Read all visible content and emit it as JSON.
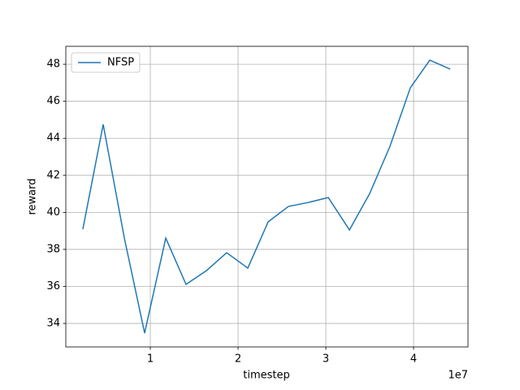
{
  "chart_data": {
    "type": "line",
    "xlabel": "timestep",
    "ylabel": "reward",
    "x_offset_label": "1e7",
    "x": [
      2310000,
      4630000,
      7040000,
      9350000,
      11760000,
      14070000,
      16390000,
      18700000,
      21110000,
      23430000,
      25740000,
      28060000,
      30280000,
      32690000,
      35000000,
      37310000,
      39630000,
      41850000,
      44170000
    ],
    "series": [
      {
        "name": "NFSP",
        "color": "#1f77b4",
        "values": [
          39.09,
          44.75,
          38.61,
          33.48,
          38.61,
          36.11,
          36.85,
          37.82,
          36.99,
          39.49,
          40.32,
          40.54,
          40.8,
          39.05,
          41.02,
          43.57,
          46.73,
          48.22,
          47.74
        ]
      }
    ],
    "xlim": [
      370000,
      46200000
    ],
    "ylim": [
      32.73,
      48.97
    ],
    "xticks": [
      {
        "value": 10000000,
        "label": "1"
      },
      {
        "value": 20000000,
        "label": "2"
      },
      {
        "value": 30000000,
        "label": "3"
      },
      {
        "value": 40000000,
        "label": "4"
      }
    ],
    "yticks": [
      34,
      36,
      38,
      40,
      42,
      44,
      46,
      48
    ],
    "grid": true,
    "legend": "upper left"
  }
}
